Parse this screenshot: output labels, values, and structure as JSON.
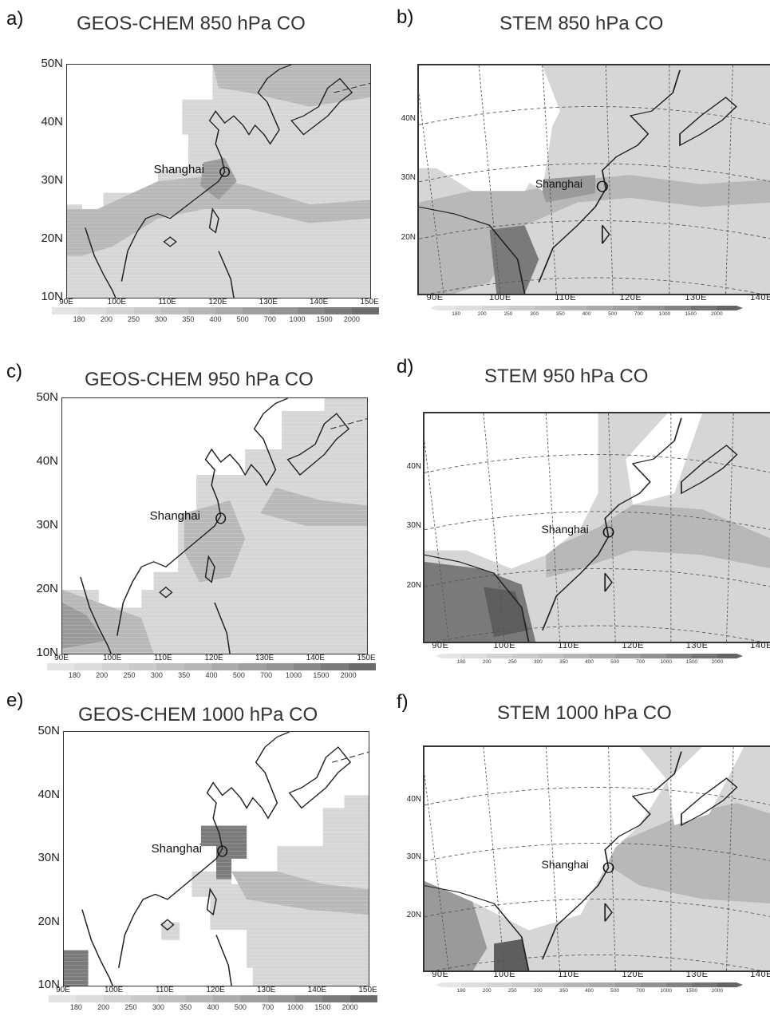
{
  "panels": [
    {
      "letter": "a)",
      "title": "GEOS-CHEM 850 hPa CO",
      "model": "geos",
      "level": 850
    },
    {
      "letter": "b)",
      "title": "STEM 850 hPa CO",
      "model": "stem",
      "level": 850
    },
    {
      "letter": "c)",
      "title": "GEOS-CHEM 950 hPa CO",
      "model": "geos",
      "level": 950
    },
    {
      "letter": "d)",
      "title": "STEM 950 hPa CO",
      "model": "stem",
      "level": 950
    },
    {
      "letter": "e)",
      "title": "GEOS-CHEM 1000 hPa CO",
      "model": "geos",
      "level": 1000
    },
    {
      "letter": "f)",
      "title": "STEM 1000 hPa CO",
      "model": "stem",
      "level": 1000
    }
  ],
  "city_label": "Shanghai",
  "geos_lat_labels": [
    "50N",
    "40N",
    "30N",
    "20N",
    "10N"
  ],
  "geos_lon_labels": [
    "90E",
    "100E",
    "110E",
    "120E",
    "130E",
    "140E",
    "150E"
  ],
  "stem_lat_labels": [
    "40N",
    "30N",
    "20N"
  ],
  "stem_lon_labels": [
    "90E",
    "100E",
    "110E",
    "120E",
    "130E",
    "140E"
  ],
  "colorbar_labels": [
    "180",
    "200",
    "250",
    "300",
    "350",
    "400",
    "500",
    "700",
    "1000",
    "1500",
    "2000"
  ],
  "colors": {
    "land_fill": "#ffffff",
    "low": "#d6d6d6",
    "mid": "#b8b8b8",
    "high": "#9a9a9a",
    "very_high": "#7a7a7a",
    "extreme": "#5e5e5e",
    "coast": "#222222"
  }
}
